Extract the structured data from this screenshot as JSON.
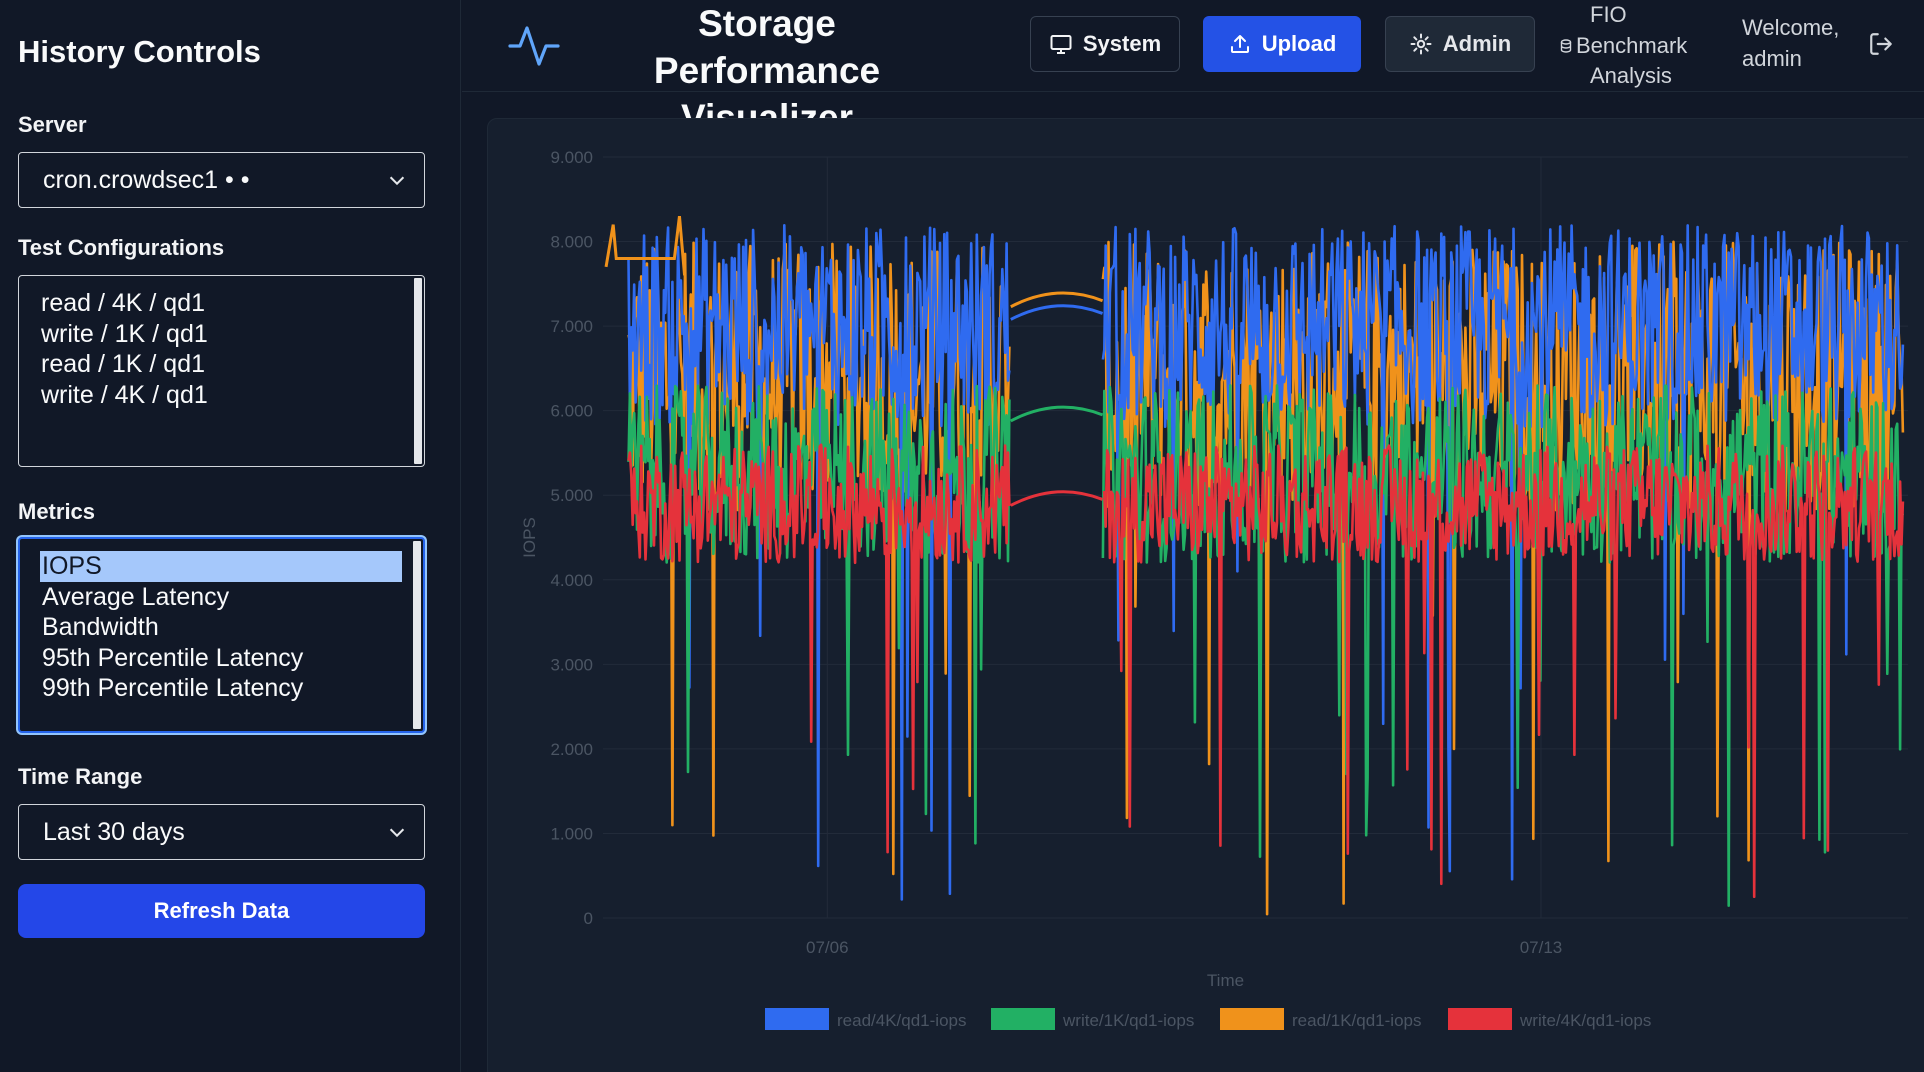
{
  "sidebar": {
    "title": "History Controls",
    "server_label": "Server",
    "server_value": "cron.crowdsec1 • •",
    "tests_label": "Test Configurations",
    "tests": [
      "read / 4K / qd1",
      "write / 1K / qd1",
      "read / 1K / qd1",
      "write / 4K / qd1"
    ],
    "metrics_label": "Metrics",
    "metrics": [
      "IOPS",
      "Average Latency",
      "Bandwidth",
      "95th Percentile Latency",
      "99th Percentile Latency"
    ],
    "metrics_selected": "IOPS",
    "time_label": "Time Range",
    "time_value": "Last 30 days",
    "refresh_label": "Refresh Data"
  },
  "header": {
    "app_title": "Storage Performance Visualizer",
    "logo_icon": "activity-pulse-icon",
    "system_label": "System",
    "upload_label": "Upload",
    "admin_label": "Admin",
    "fio_line1": "FIO",
    "fio_line2": "Benchmark",
    "fio_line3": "Analysis",
    "welcome_line1": "Welcome,",
    "welcome_line2": "admin"
  },
  "chart_data": {
    "type": "line",
    "ylabel": "IOPS",
    "xlabel": "Time",
    "ylim": [
      0,
      9000
    ],
    "yticks": [
      "0",
      "1.000",
      "2.000",
      "3.000",
      "4.000",
      "5.000",
      "6.000",
      "7.000",
      "8.000",
      "9.000"
    ],
    "xticks": [
      {
        "label": "07/06",
        "day": 6
      },
      {
        "label": "07/13",
        "day": 13
      }
    ],
    "x_start_day": 3.8,
    "x_end_day": 16.6,
    "legend_position": "bottom",
    "gap": [
      7.8,
      8.7
    ],
    "series": [
      {
        "name": "read/4K/qd1-iops",
        "color": "#2f6bf0",
        "mean": 7100,
        "low": 5800,
        "high": 8200,
        "gap_level": 7150
      },
      {
        "name": "write/1K/qd1-iops",
        "color": "#22b064",
        "mean": 5400,
        "low": 4200,
        "high": 6300,
        "gap_level": 5950
      },
      {
        "name": "read/1K/qd1-iops",
        "color": "#f0921b",
        "mean": 6700,
        "low": 4800,
        "high": 8000,
        "gap_level": 7300
      },
      {
        "name": "write/4K/qd1-iops",
        "color": "#e5323b",
        "mean": 5000,
        "low": 4200,
        "high": 5600,
        "gap_level": 4950
      }
    ]
  }
}
